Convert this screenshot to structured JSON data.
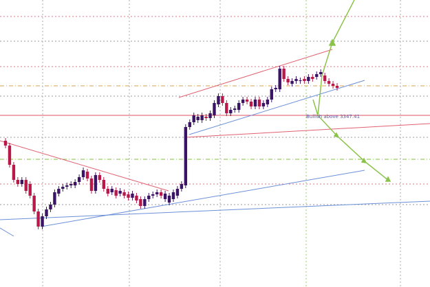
{
  "chart_data": {
    "type": "candlestick",
    "annotations": [
      {
        "text": "Bullish above 3347.41"
      }
    ],
    "up_color": "#3b1466",
    "down_color": "#b8184a",
    "ylim": [
      3097,
      3515
    ],
    "open": [
      3310,
      3303,
      3275,
      3253,
      3247,
      3253,
      3247,
      3230,
      3207,
      3185,
      3200,
      3210,
      3217,
      3233,
      3240,
      3243,
      3245,
      3245,
      3250,
      3257,
      3265,
      3255,
      3237,
      3260,
      3253,
      3240,
      3235,
      3238,
      3233,
      3235,
      3232,
      3227,
      3230,
      3225,
      3215,
      3225,
      3230,
      3232,
      3235,
      3225,
      3220,
      3225,
      3230,
      3240,
      3245,
      3330,
      3337,
      3340,
      3340,
      3345,
      3343,
      3347,
      3363,
      3375,
      3365,
      3350,
      3355,
      3355,
      3365,
      3370,
      3367,
      3360,
      3370,
      3360,
      3363,
      3370,
      3385,
      3385,
      3415,
      3400,
      3393,
      3397,
      3397,
      3400,
      3397,
      3403,
      3403,
      3407,
      3405,
      3397,
      3393,
      3390
    ],
    "high": [
      3314,
      3307,
      3279,
      3257,
      3257,
      3257,
      3251,
      3234,
      3211,
      3204,
      3214,
      3221,
      3239,
      3244,
      3247,
      3249,
      3251,
      3254,
      3261,
      3271,
      3269,
      3259,
      3264,
      3264,
      3257,
      3244,
      3244,
      3242,
      3241,
      3239,
      3236,
      3237,
      3234,
      3229,
      3229,
      3234,
      3236,
      3239,
      3239,
      3237,
      3234,
      3239,
      3244,
      3251,
      3334,
      3341,
      3351,
      3349,
      3351,
      3349,
      3354,
      3369,
      3379,
      3379,
      3369,
      3359,
      3361,
      3369,
      3374,
      3374,
      3371,
      3374,
      3374,
      3369,
      3374,
      3389,
      3391,
      3419,
      3419,
      3404,
      3401,
      3404,
      3402,
      3404,
      3407,
      3407,
      3411,
      3414,
      3409,
      3401,
      3397,
      3394
    ],
    "low": [
      3299,
      3271,
      3249,
      3243,
      3243,
      3233,
      3226,
      3203,
      3181,
      3181,
      3196,
      3206,
      3213,
      3229,
      3236,
      3239,
      3241,
      3241,
      3246,
      3253,
      3251,
      3233,
      3233,
      3249,
      3236,
      3229,
      3231,
      3226,
      3229,
      3226,
      3223,
      3223,
      3219,
      3211,
      3211,
      3221,
      3226,
      3228,
      3226,
      3221,
      3216,
      3221,
      3226,
      3236,
      3241,
      3326,
      3333,
      3336,
      3336,
      3339,
      3339,
      3343,
      3359,
      3361,
      3346,
      3346,
      3351,
      3351,
      3361,
      3363,
      3356,
      3356,
      3356,
      3356,
      3359,
      3366,
      3381,
      3381,
      3396,
      3391,
      3389,
      3393,
      3393,
      3393,
      3393,
      3396,
      3399,
      3403,
      3393,
      3389,
      3386,
      3383
    ],
    "close": [
      3303,
      3275,
      3253,
      3247,
      3253,
      3237,
      3230,
      3207,
      3185,
      3200,
      3210,
      3217,
      3235,
      3240,
      3243,
      3245,
      3247,
      3250,
      3257,
      3267,
      3255,
      3237,
      3260,
      3253,
      3240,
      3233,
      3240,
      3230,
      3237,
      3230,
      3227,
      3233,
      3223,
      3215,
      3225,
      3230,
      3232,
      3235,
      3230,
      3233,
      3230,
      3235,
      3240,
      3247,
      3330,
      3337,
      3347,
      3345,
      3347,
      3343,
      3350,
      3365,
      3375,
      3365,
      3350,
      3355,
      3357,
      3365,
      3370,
      3367,
      3360,
      3370,
      3360,
      3365,
      3370,
      3385,
      3387,
      3415,
      3400,
      3395,
      3397,
      3400,
      3398,
      3397,
      3403,
      3400,
      3407,
      3410,
      3397,
      3393,
      3390,
      3387
    ]
  }
}
